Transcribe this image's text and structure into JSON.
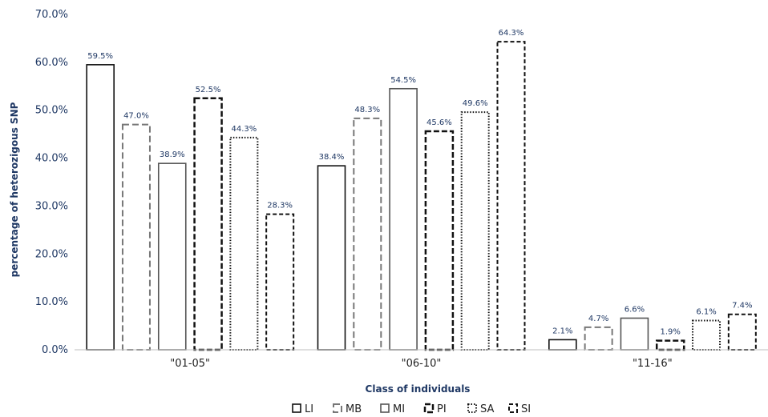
{
  "chart_data": {
    "type": "bar",
    "title": "",
    "xlabel": "Class of individuals",
    "ylabel": "percentage of heterozigous SNP",
    "categories": [
      "\"01-05\"",
      "\"06-10\"",
      "\"11-16\""
    ],
    "ylim": [
      0,
      70
    ],
    "yticks": [
      "0.0%",
      "10.0%",
      "20.0%",
      "30.0%",
      "40.0%",
      "50.0%",
      "60.0%",
      "70.0%"
    ],
    "grid": false,
    "legend_position": "bottom",
    "series": [
      {
        "name": "LI",
        "values": [
          59.5,
          38.4,
          2.1
        ],
        "labels": [
          "59.5%",
          "38.4%",
          "2.1%"
        ],
        "style": "solid",
        "color": "#111111"
      },
      {
        "name": "MB",
        "values": [
          47.0,
          48.3,
          4.7
        ],
        "labels": [
          "47.0%",
          "48.3%",
          "4.7%"
        ],
        "style": "long-dash",
        "color": "#777777"
      },
      {
        "name": "MI",
        "values": [
          38.9,
          54.5,
          6.6
        ],
        "labels": [
          "38.9%",
          "54.5%",
          "6.6%"
        ],
        "style": "solid",
        "color": "#555555"
      },
      {
        "name": "PI",
        "values": [
          52.5,
          45.6,
          1.9
        ],
        "labels": [
          "52.5%",
          "45.6%",
          "1.9%"
        ],
        "style": "bold-dash",
        "color": "#111111"
      },
      {
        "name": "SA",
        "values": [
          44.3,
          49.6,
          6.1
        ],
        "labels": [
          "44.3%",
          "49.6%",
          "6.1%"
        ],
        "style": "dotted",
        "color": "#111111"
      },
      {
        "name": "SI",
        "values": [
          28.3,
          64.3,
          7.4
        ],
        "labels": [
          "28.3%",
          "64.3%",
          "7.4%"
        ],
        "style": "dashed",
        "color": "#111111"
      }
    ]
  }
}
